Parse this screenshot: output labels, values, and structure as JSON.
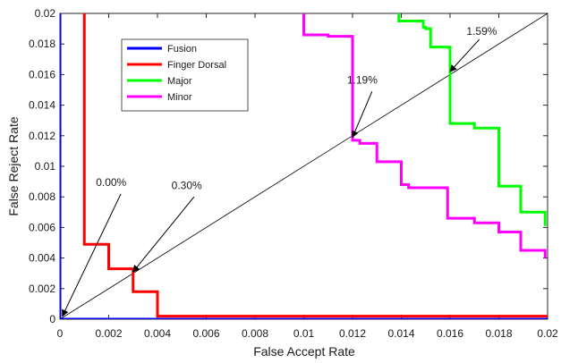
{
  "chart_data": {
    "type": "line",
    "xlabel": "False Accept Rate",
    "ylabel": "False Reject Rate",
    "xlim": [
      0,
      0.02
    ],
    "ylim": [
      0,
      0.02
    ],
    "xticks": [
      "0",
      "0.002",
      "0.004",
      "0.006",
      "0.008",
      "0.01",
      "0.012",
      "0.014",
      "0.016",
      "0.018",
      "0.02"
    ],
    "yticks": [
      "0",
      "0.002",
      "0.004",
      "0.006",
      "0.008",
      "0.01",
      "0.012",
      "0.014",
      "0.016",
      "0.018",
      "0.02"
    ],
    "grid": false,
    "legend_position": "top-left",
    "series": [
      {
        "name": "Fusion",
        "color": "#0000ff",
        "points": [
          [
            0.0,
            0.02
          ],
          [
            0.0,
            0.0
          ],
          [
            0.02,
            0.0
          ]
        ]
      },
      {
        "name": "Finger Dorsal",
        "color": "#ff0000",
        "points": [
          [
            0.001,
            0.02
          ],
          [
            0.001,
            0.0049
          ],
          [
            0.002,
            0.0049
          ],
          [
            0.002,
            0.0033
          ],
          [
            0.003,
            0.0033
          ],
          [
            0.003,
            0.0018
          ],
          [
            0.004,
            0.0018
          ],
          [
            0.004,
            0.0002
          ],
          [
            0.02,
            0.0002
          ]
        ]
      },
      {
        "name": "Major",
        "color": "#00ff00",
        "points": [
          [
            0.0139,
            0.02
          ],
          [
            0.0139,
            0.0195
          ],
          [
            0.0149,
            0.0195
          ],
          [
            0.0149,
            0.0191
          ],
          [
            0.015,
            0.0191
          ],
          [
            0.015,
            0.019
          ],
          [
            0.0152,
            0.019
          ],
          [
            0.0152,
            0.0178
          ],
          [
            0.016,
            0.0178
          ],
          [
            0.016,
            0.0128
          ],
          [
            0.017,
            0.0128
          ],
          [
            0.017,
            0.0125
          ],
          [
            0.018,
            0.0125
          ],
          [
            0.018,
            0.0087
          ],
          [
            0.0189,
            0.0087
          ],
          [
            0.0189,
            0.007
          ],
          [
            0.0199,
            0.007
          ],
          [
            0.0199,
            0.0061
          ]
        ]
      },
      {
        "name": "Minor",
        "color": "#ff00ff",
        "points": [
          [
            0.01,
            0.02
          ],
          [
            0.01,
            0.0186
          ],
          [
            0.011,
            0.0186
          ],
          [
            0.011,
            0.0185
          ],
          [
            0.012,
            0.0185
          ],
          [
            0.012,
            0.0117
          ],
          [
            0.0123,
            0.0117
          ],
          [
            0.0123,
            0.0115
          ],
          [
            0.013,
            0.0115
          ],
          [
            0.013,
            0.0103
          ],
          [
            0.014,
            0.0103
          ],
          [
            0.014,
            0.0088
          ],
          [
            0.0143,
            0.0088
          ],
          [
            0.0143,
            0.0086
          ],
          [
            0.0159,
            0.0086
          ],
          [
            0.0159,
            0.0066
          ],
          [
            0.017,
            0.0066
          ],
          [
            0.017,
            0.0063
          ],
          [
            0.018,
            0.0063
          ],
          [
            0.018,
            0.0057
          ],
          [
            0.0189,
            0.0057
          ],
          [
            0.0189,
            0.0045
          ],
          [
            0.0199,
            0.0045
          ],
          [
            0.0199,
            0.004
          ]
        ]
      }
    ],
    "reference_line": {
      "color": "#000000",
      "points": [
        [
          0,
          0
        ],
        [
          0.02,
          0.02
        ]
      ]
    },
    "annotations": [
      {
        "text": "0.00%",
        "text_at": [
          0.0021,
          0.0087
        ],
        "arrow_tail": [
          0.0025,
          0.0082
        ],
        "arrow_head": [
          0.0001,
          0.0002
        ]
      },
      {
        "text": "0.30%",
        "text_at": [
          0.0052,
          0.0085
        ],
        "arrow_tail": [
          0.0055,
          0.008
        ],
        "arrow_head": [
          0.003,
          0.0031
        ]
      },
      {
        "text": "1.19%",
        "text_at": [
          0.0124,
          0.0154
        ],
        "arrow_tail": [
          0.0128,
          0.0149
        ],
        "arrow_head": [
          0.012,
          0.0119
        ]
      },
      {
        "text": "1.59%",
        "text_at": [
          0.0173,
          0.0186
        ],
        "arrow_tail": [
          0.0172,
          0.0183
        ],
        "arrow_head": [
          0.016,
          0.0162
        ]
      }
    ]
  }
}
